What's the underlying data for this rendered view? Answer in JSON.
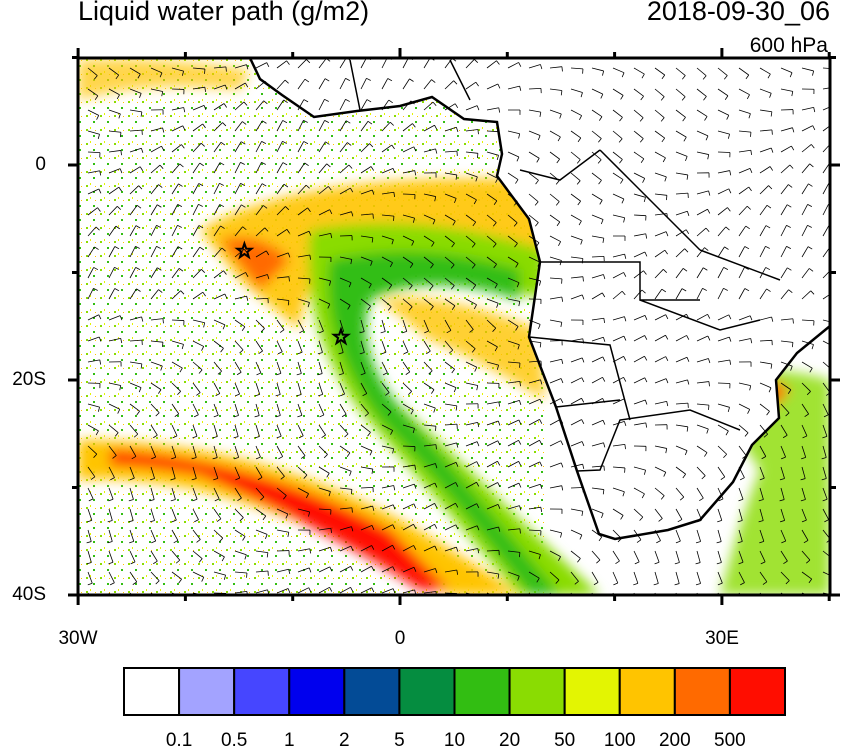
{
  "title": "Liquid water path (g/m2)",
  "datetime": "2018-09-30_06",
  "level": "600 hPa",
  "map": {
    "lon_range": [
      -30,
      40
    ],
    "lat_range": [
      -40,
      10
    ],
    "lat_labels": [
      "0",
      "20S",
      "40S"
    ],
    "lon_labels": [
      "30W",
      "0",
      "30E"
    ],
    "markers": [
      {
        "name": "star",
        "lon": -14.5,
        "lat": -8
      },
      {
        "name": "star",
        "lon": -5.5,
        "lat": -16
      }
    ]
  },
  "colorbar": {
    "colors": [
      "#ffffff",
      "#a3a3ff",
      "#4646ff",
      "#0000ee",
      "#034b96",
      "#058d40",
      "#32be12",
      "#8adc02",
      "#e3f502",
      "#ffc400",
      "#ff6a00",
      "#ff0d00"
    ],
    "labels": [
      "0.1",
      "0.5",
      "1",
      "2",
      "5",
      "10",
      "20",
      "50",
      "100",
      "200",
      "500"
    ]
  }
}
